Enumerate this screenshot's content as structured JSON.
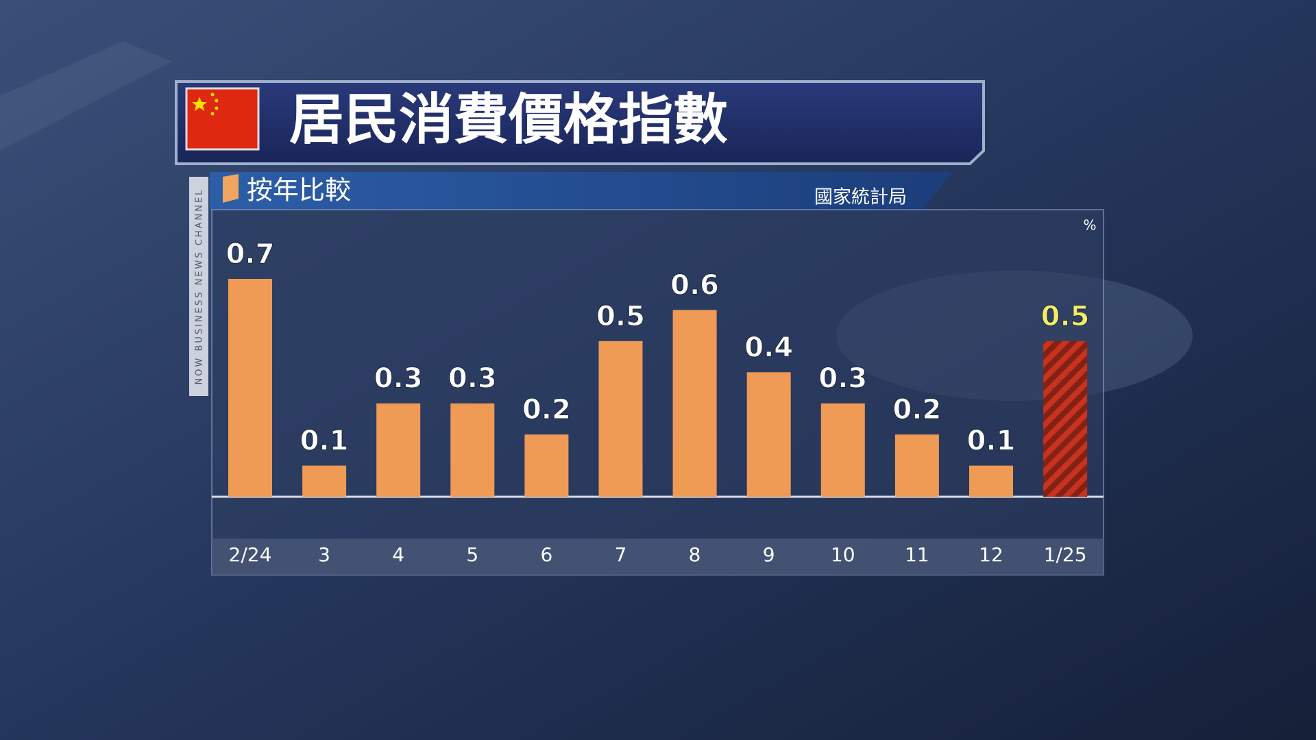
{
  "chart_data": {
    "type": "bar",
    "title": "居民消費價格指數",
    "subtitle": "按年比較",
    "source": "國家統計局",
    "unit": "%",
    "channel": "NOW BUSINESS NEWS CHANNEL",
    "categories": [
      "2/24",
      "3",
      "4",
      "5",
      "6",
      "7",
      "8",
      "9",
      "10",
      "11",
      "12",
      "1/25"
    ],
    "values": [
      0.7,
      0.1,
      0.3,
      0.3,
      0.2,
      0.5,
      0.6,
      0.4,
      0.3,
      0.2,
      0.1,
      0.5
    ],
    "colors": [
      "#ef9a55",
      "#ef9a55",
      "#ef9a55",
      "#ef9a55",
      "#ef9a55",
      "#ef9a55",
      "#ef9a55",
      "#ef9a55",
      "#ef9a55",
      "#ef9a55",
      "#ef9a55",
      "#c8321e"
    ],
    "label_colors": [
      "#ffffff",
      "#ffffff",
      "#ffffff",
      "#ffffff",
      "#ffffff",
      "#ffffff",
      "#ffffff",
      "#ffffff",
      "#ffffff",
      "#ffffff",
      "#ffffff",
      "#f3ea6a"
    ]
  }
}
